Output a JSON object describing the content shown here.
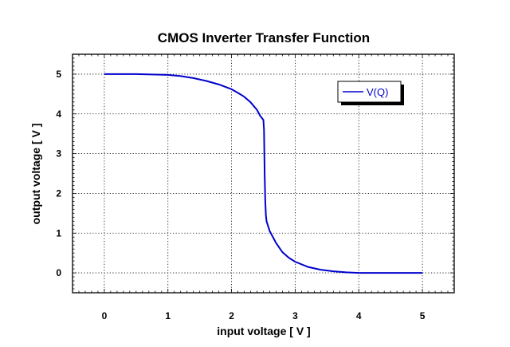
{
  "chart_data": {
    "type": "line",
    "title": "CMOS Inverter Transfer Function",
    "xlabel": "input voltage   [ V ]",
    "ylabel": "output voltage   [ V ]",
    "xlim": [
      -0.5,
      5.5
    ],
    "ylim": [
      -0.5,
      5.5
    ],
    "x_ticks": [
      0,
      1,
      2,
      3,
      4,
      5
    ],
    "y_ticks": [
      0,
      1,
      2,
      3,
      4,
      5
    ],
    "grid": true,
    "legend_position": "top-right",
    "series": [
      {
        "name": "V(Q)",
        "color": "#0000cc",
        "x": [
          0,
          0.5,
          1.0,
          1.2,
          1.4,
          1.6,
          1.8,
          2.0,
          2.1,
          2.2,
          2.3,
          2.4,
          2.45,
          2.5,
          2.51,
          2.52,
          2.53,
          2.54,
          2.55,
          2.6,
          2.7,
          2.8,
          2.9,
          3.0,
          3.2,
          3.4,
          3.6,
          3.8,
          4.0,
          4.5,
          5.0
        ],
        "y": [
          5.0,
          5.0,
          4.98,
          4.95,
          4.9,
          4.83,
          4.74,
          4.62,
          4.53,
          4.43,
          4.29,
          4.1,
          3.95,
          3.85,
          3.6,
          2.5,
          1.8,
          1.45,
          1.3,
          1.05,
          0.75,
          0.52,
          0.38,
          0.28,
          0.15,
          0.08,
          0.04,
          0.015,
          0.0,
          0.0,
          0.0
        ]
      }
    ]
  }
}
